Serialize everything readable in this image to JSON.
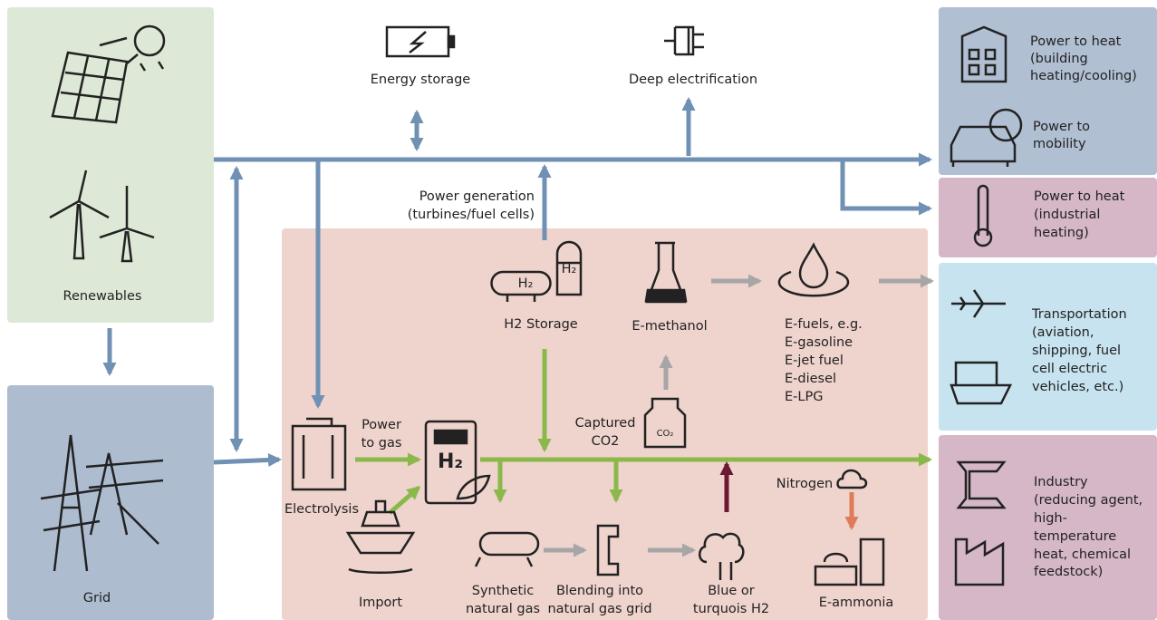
{
  "renewables": "Renewables",
  "grid": "Grid",
  "energy_storage": "Energy storage",
  "deep_electrification": "Deep electrification",
  "power_generation": [
    "Power generation",
    "(turbines/fuel  cells)"
  ],
  "h2_storage": "H2 Storage",
  "e_methanol": "E-methanol",
  "e_fuels": [
    "E-fuels, e.g.",
    "E-gasoline",
    "E-jet fuel",
    "E-diesel",
    "E-LPG"
  ],
  "captured_co2": [
    "Captured",
    "CO2"
  ],
  "power_to_gas": [
    "Power",
    "to gas"
  ],
  "electrolysis": "Electrolysis",
  "import": "Import",
  "synthetic_natural_gas": [
    "Synthetic",
    "natural gas"
  ],
  "blending": [
    "Blending into",
    "natural gas grid"
  ],
  "blue_h2": [
    "Blue or",
    "turquois H2"
  ],
  "nitrogen": "Nitrogen",
  "e_ammonia": "E-ammonia",
  "power_to_heat_building": [
    "Power to heat",
    "(building",
    "heating/cooling)"
  ],
  "power_to_mobility": [
    "Power to",
    "mobility"
  ],
  "power_to_heat_industrial": [
    "Power to heat",
    "(industrial",
    "heating)"
  ],
  "transportation": [
    "Transportation",
    "(aviation,",
    "shipping,  fuel",
    "cell electric",
    "vehicles, etc.)"
  ],
  "industry": [
    "Industry",
    "(reducing agent,",
    "high-",
    "temperature",
    "heat, chemical",
    "feedstock)"
  ],
  "icon_labels": {
    "h2_small": "H₂",
    "h2_tower": "H₂",
    "h2_big": "H₂",
    "co2": "CO₂"
  }
}
